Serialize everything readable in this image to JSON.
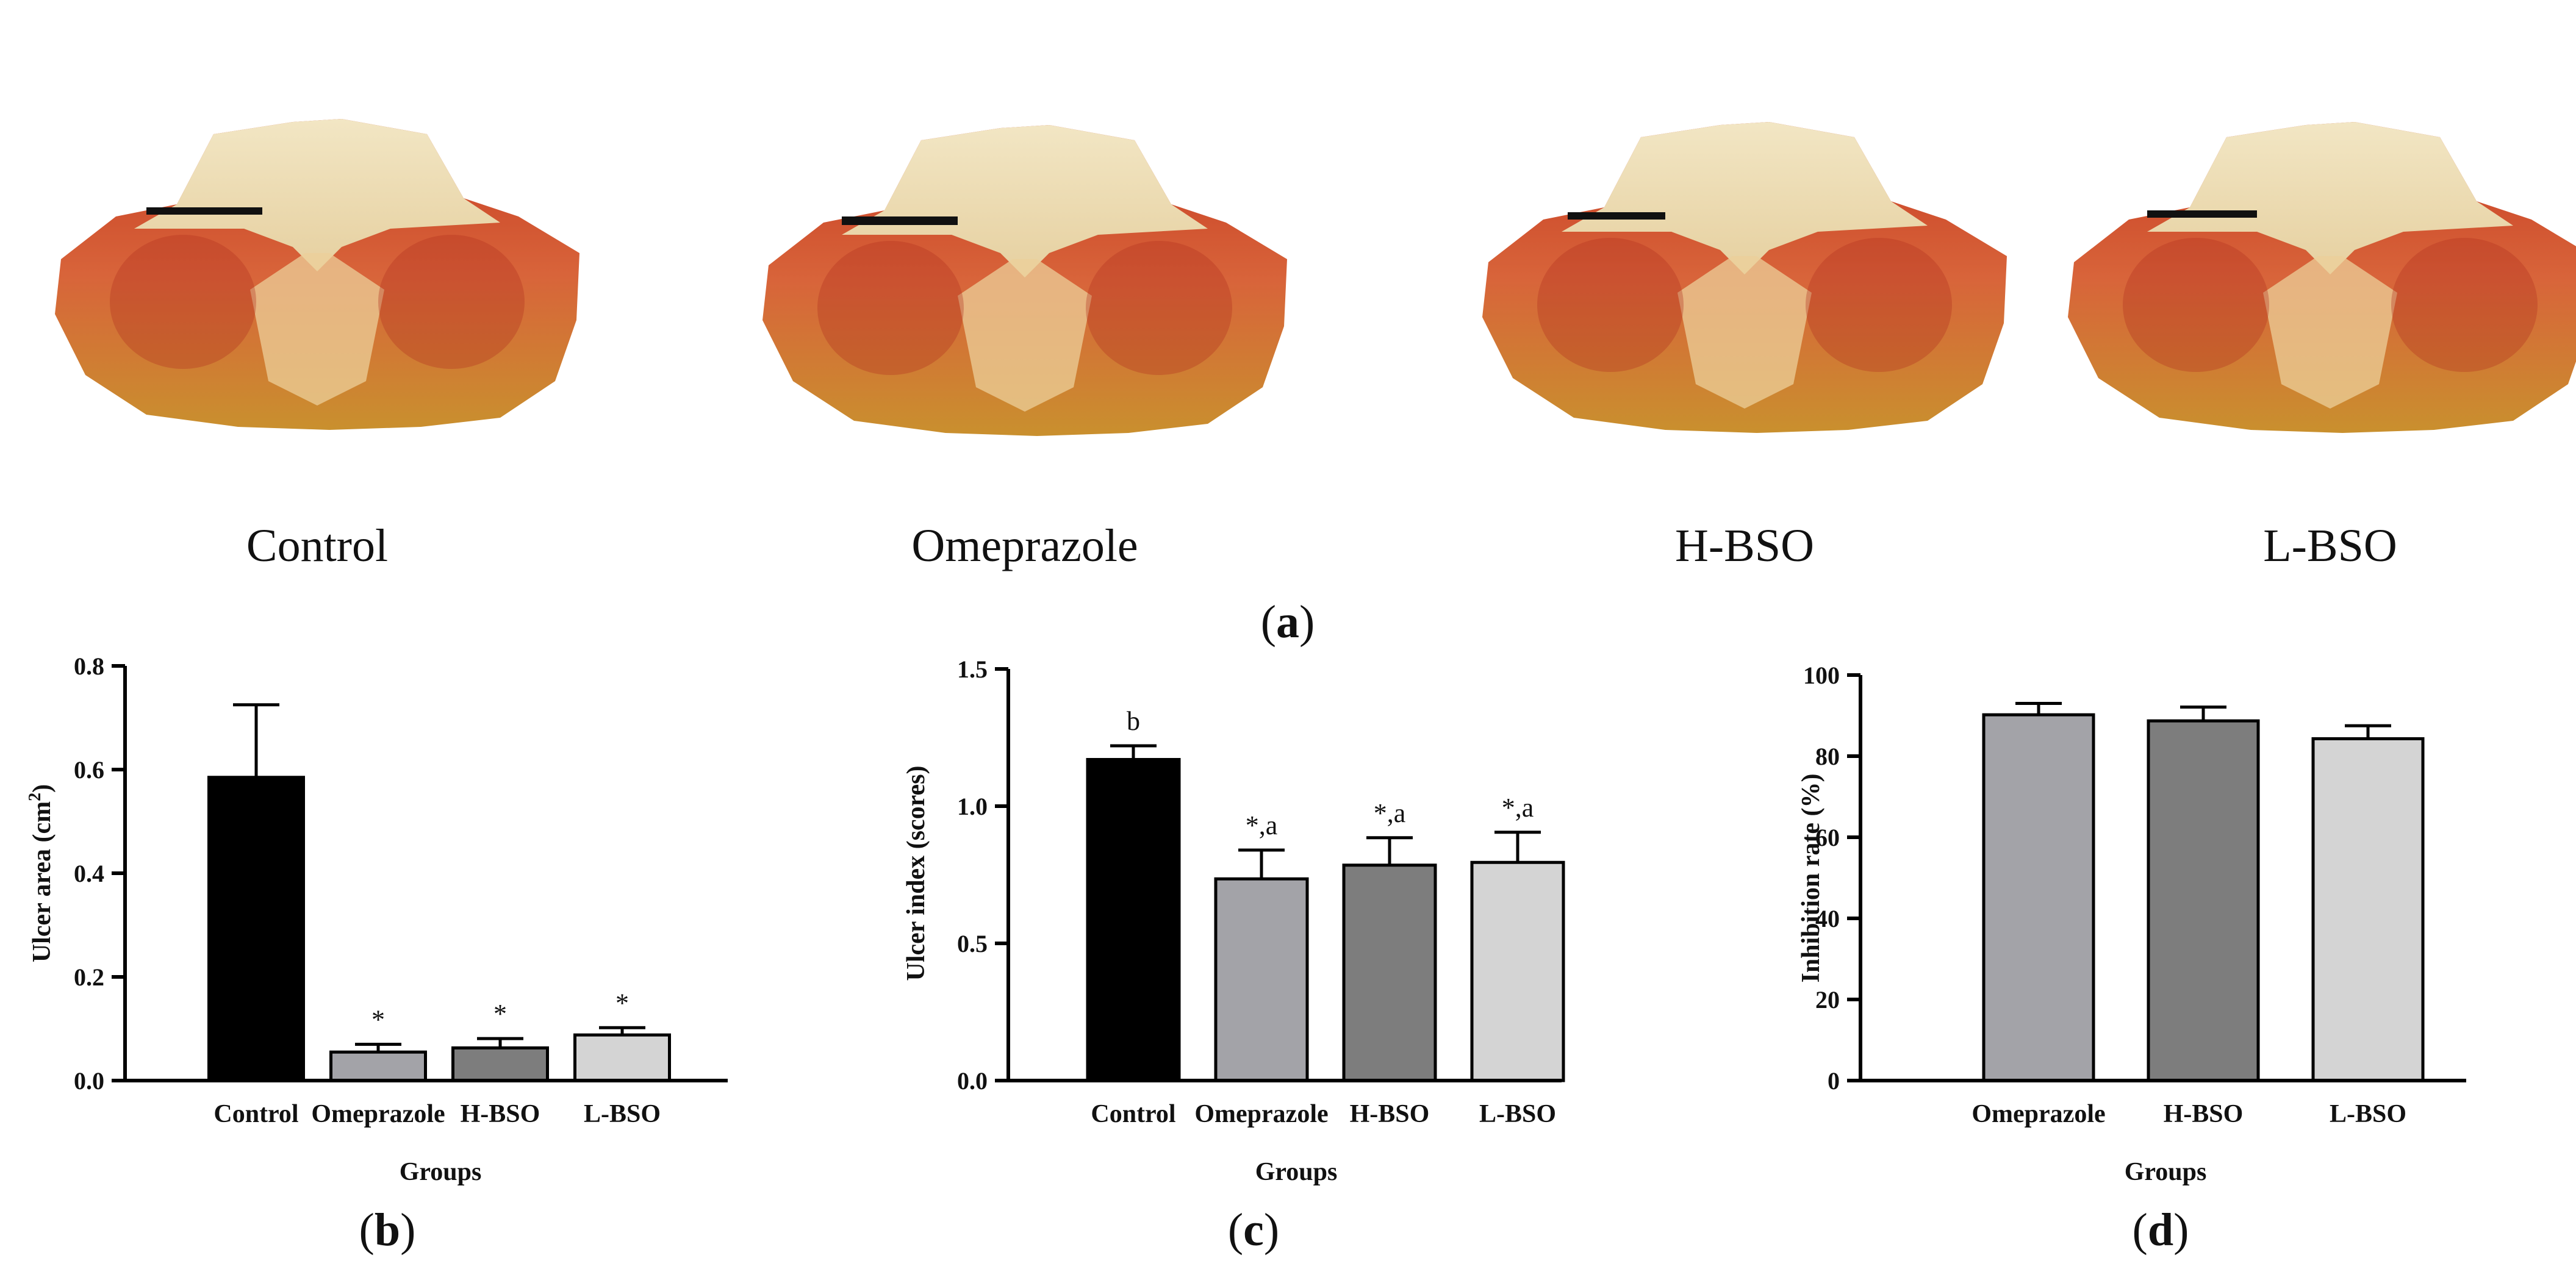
{
  "panel_a": {
    "label": "a",
    "captions": [
      "Control",
      "Omeprazole",
      "H-BSO",
      "L-BSO"
    ]
  },
  "chart_data": [
    {
      "panel": "b",
      "type": "bar",
      "title": "",
      "xlabel": "Groups",
      "ylabel_main": "Ulcer area (cm",
      "ylabel_sup": "2",
      "ylabel_end": ")",
      "categories": [
        "Control",
        "Omeprazole",
        "H-BSO",
        "L-BSO"
      ],
      "values": [
        0.585,
        0.055,
        0.063,
        0.088
      ],
      "errors": [
        0.14,
        0.015,
        0.018,
        0.014
      ],
      "annotations": [
        "",
        "*",
        "*",
        "*"
      ],
      "colors": [
        "#000000",
        "#a3a3a8",
        "#7d7d7d",
        "#d4d4d4"
      ],
      "ylim": [
        0,
        0.8
      ],
      "yticks": [
        0.0,
        0.2,
        0.4,
        0.6,
        0.8
      ],
      "ytick_labels": [
        "0.0",
        "0.2",
        "0.4",
        "0.6",
        "0.8"
      ]
    },
    {
      "panel": "c",
      "type": "bar",
      "title": "",
      "xlabel": "Groups",
      "ylabel_main": "Ulcer index (scores)",
      "ylabel_sup": "",
      "ylabel_end": "",
      "categories": [
        "Control",
        "Omeprazole",
        "H-BSO",
        "L-BSO"
      ],
      "values": [
        1.17,
        0.735,
        0.785,
        0.795
      ],
      "errors": [
        0.05,
        0.105,
        0.1,
        0.11
      ],
      "annotations": [
        "b",
        "*,a",
        "*,a",
        "*,a"
      ],
      "colors": [
        "#000000",
        "#a3a3a8",
        "#7d7d7d",
        "#d4d4d4"
      ],
      "ylim": [
        0,
        1.5
      ],
      "yticks": [
        0.0,
        0.5,
        1.0,
        1.5
      ],
      "ytick_labels": [
        "0.0",
        "0.5",
        "1.0",
        "1.5"
      ]
    },
    {
      "panel": "d",
      "type": "bar",
      "title": "",
      "xlabel": "Groups",
      "ylabel_main": "Inhibition rate (%)",
      "ylabel_sup": "",
      "ylabel_end": "",
      "categories": [
        "Omeprazole",
        "H-BSO",
        "L-BSO"
      ],
      "values": [
        90.2,
        88.7,
        84.3
      ],
      "errors": [
        2.8,
        3.4,
        3.2
      ],
      "annotations": [
        "",
        "",
        ""
      ],
      "colors": [
        "#a3a3a8",
        "#7d7d7d",
        "#d4d4d4"
      ],
      "ylim": [
        0,
        100
      ],
      "yticks": [
        0,
        20,
        40,
        60,
        80,
        100
      ],
      "ytick_labels": [
        "0",
        "20",
        "40",
        "60",
        "80",
        "100"
      ]
    }
  ]
}
